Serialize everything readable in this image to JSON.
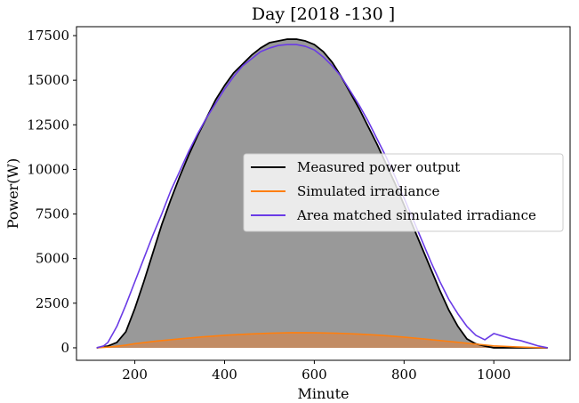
{
  "chart_data": {
    "type": "line",
    "title": "Day [2018 -130 ]",
    "xlabel": "Minute",
    "ylabel": "Power(W)",
    "xlim": [
      70,
      1170
    ],
    "ylim": [
      -700,
      18000
    ],
    "xticks": [
      200,
      400,
      600,
      800,
      1000
    ],
    "yticks": [
      0,
      2500,
      5000,
      7500,
      10000,
      12500,
      15000,
      17500
    ],
    "grid": false,
    "legend_position": "center-right",
    "series": [
      {
        "name": "Measured power output",
        "color": "#000000",
        "fill": "#999999",
        "x": [
          115,
          140,
          160,
          180,
          200,
          220,
          240,
          260,
          280,
          300,
          320,
          340,
          360,
          380,
          400,
          420,
          440,
          460,
          480,
          500,
          520,
          540,
          560,
          580,
          600,
          620,
          640,
          660,
          680,
          700,
          720,
          740,
          760,
          780,
          800,
          820,
          840,
          860,
          880,
          900,
          920,
          940,
          960,
          980,
          1000,
          1020,
          1040,
          1060,
          1080,
          1100,
          1120
        ],
        "y": [
          0,
          100,
          300,
          900,
          2200,
          3700,
          5300,
          6900,
          8300,
          9600,
          10800,
          11900,
          12900,
          13900,
          14700,
          15400,
          15900,
          16400,
          16800,
          17100,
          17200,
          17300,
          17300,
          17200,
          17000,
          16600,
          16000,
          15200,
          14300,
          13400,
          12400,
          11400,
          10300,
          9200,
          8000,
          6800,
          5600,
          4400,
          3200,
          2100,
          1200,
          500,
          220,
          100,
          0,
          0,
          0,
          0,
          0,
          0,
          0
        ]
      },
      {
        "name": "Simulated irradiance",
        "color": "#ff7f0e",
        "fill": "#c9895a",
        "x": [
          115,
          140,
          160,
          180,
          200,
          250,
          300,
          350,
          400,
          450,
          500,
          550,
          600,
          650,
          700,
          750,
          800,
          850,
          900,
          950,
          1000,
          1050,
          1100,
          1120
        ],
        "y": [
          0,
          40,
          90,
          150,
          230,
          380,
          500,
          610,
          700,
          770,
          820,
          850,
          845,
          820,
          770,
          700,
          600,
          480,
          360,
          230,
          110,
          50,
          10,
          0
        ]
      },
      {
        "name": "Area matched simulated irradiance",
        "color": "#6a3be6",
        "x": [
          115,
          130,
          140,
          160,
          180,
          200,
          220,
          240,
          260,
          280,
          300,
          320,
          340,
          360,
          380,
          400,
          420,
          440,
          460,
          480,
          500,
          520,
          540,
          560,
          580,
          600,
          620,
          640,
          660,
          680,
          700,
          720,
          740,
          760,
          780,
          800,
          820,
          840,
          860,
          880,
          900,
          920,
          940,
          960,
          980,
          1000,
          1020,
          1040,
          1060,
          1080,
          1100,
          1120
        ],
        "y": [
          0,
          100,
          300,
          1200,
          2400,
          3700,
          5000,
          6300,
          7500,
          8800,
          9900,
          11000,
          12000,
          12900,
          13700,
          14500,
          15200,
          15800,
          16200,
          16600,
          16800,
          16950,
          17000,
          17000,
          16900,
          16700,
          16300,
          15800,
          15200,
          14400,
          13600,
          12700,
          11700,
          10700,
          9600,
          8400,
          7200,
          6000,
          4800,
          3700,
          2700,
          1900,
          1200,
          700,
          450,
          800,
          650,
          500,
          400,
          250,
          100,
          0
        ]
      }
    ]
  }
}
